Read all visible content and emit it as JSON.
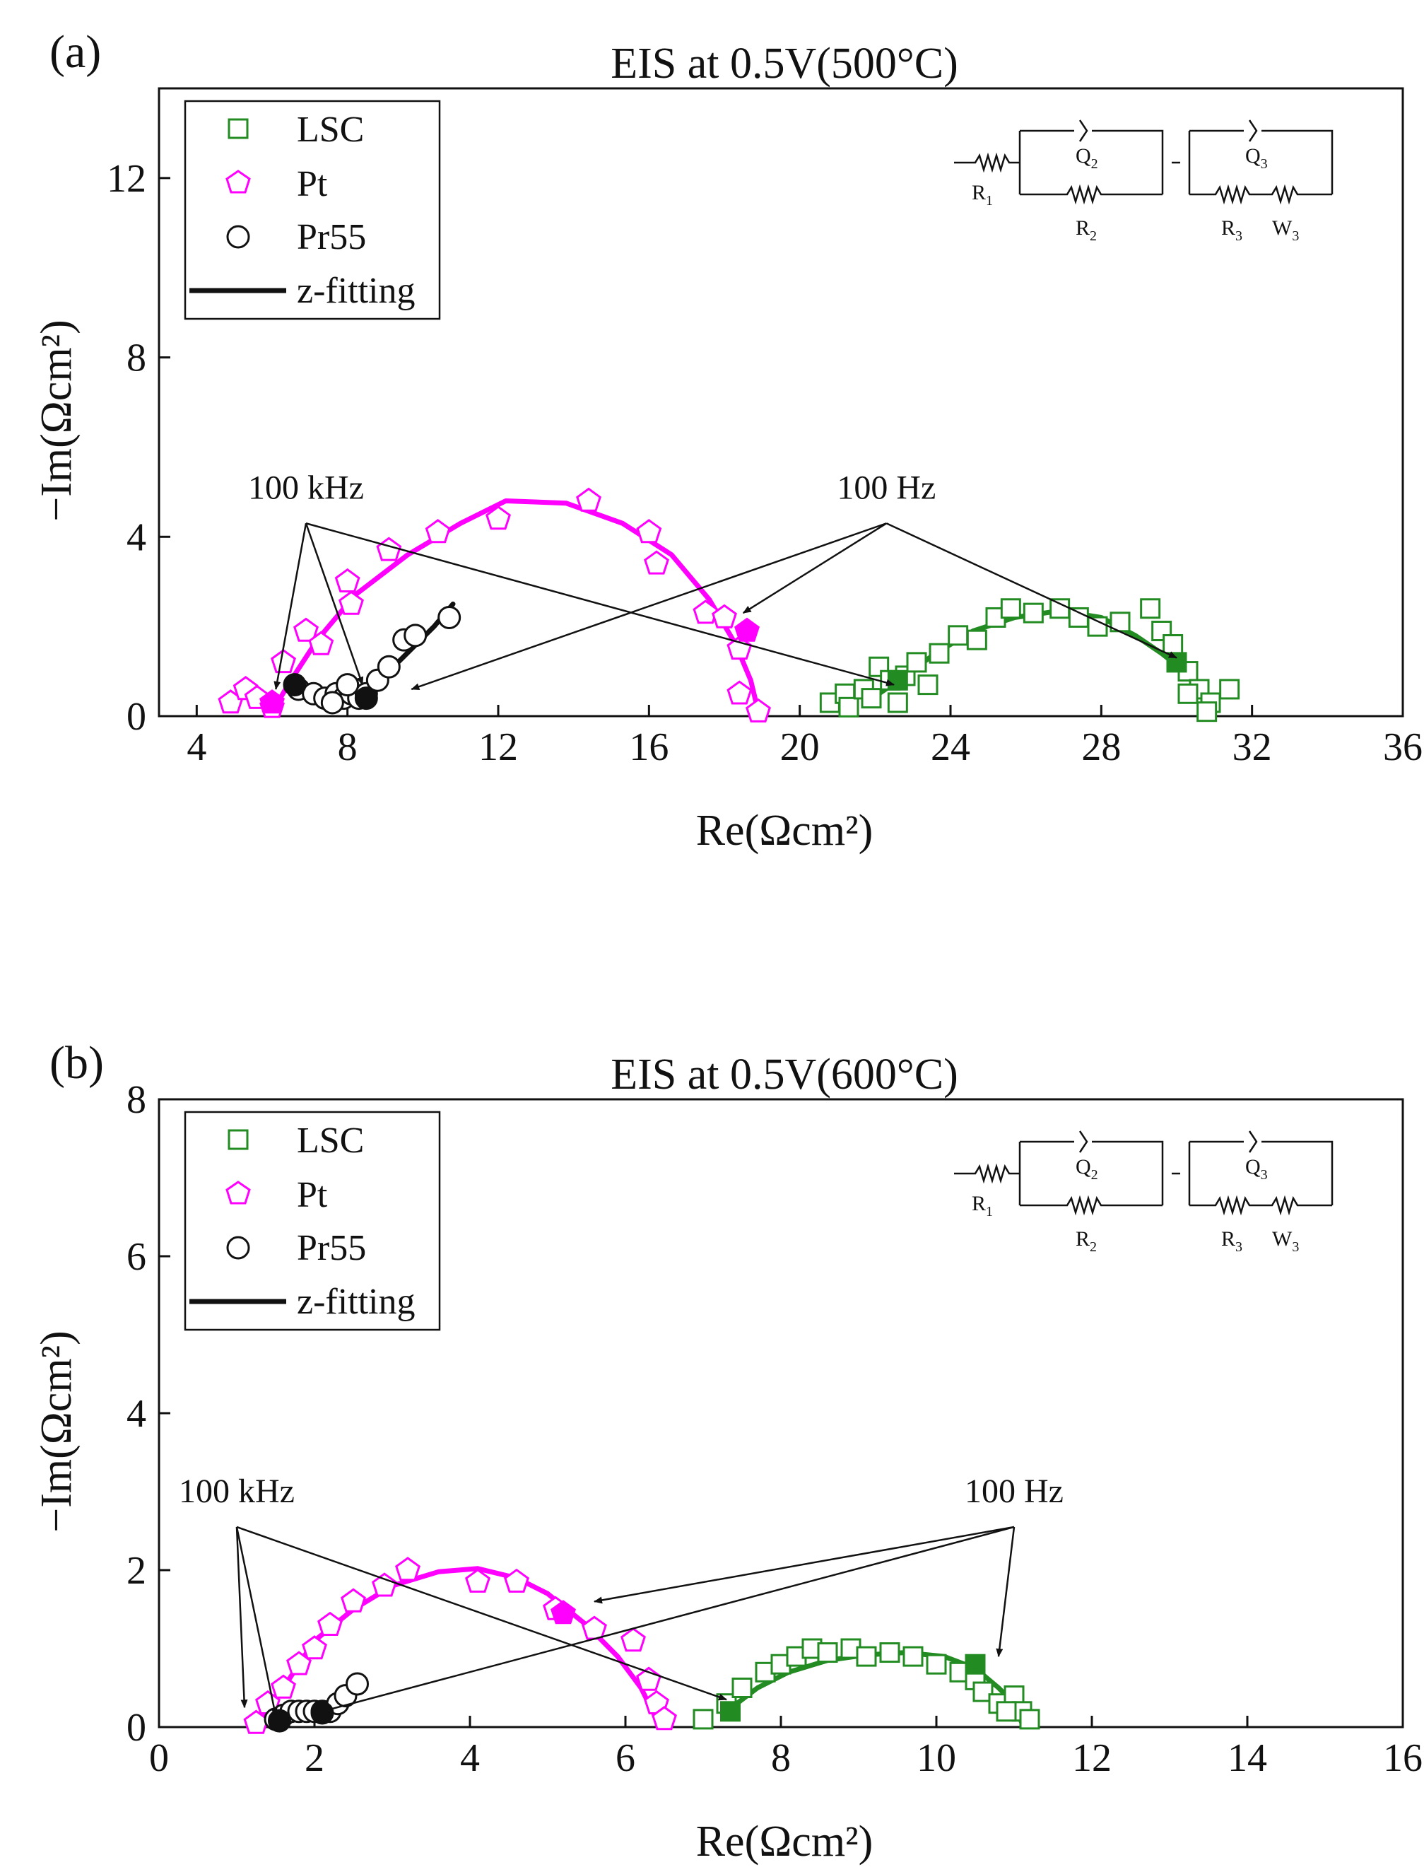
{
  "colors": {
    "LSC": "#228B22",
    "Pt": "#FF00FF",
    "Pr55": "#111111",
    "fit": "#111111",
    "axis": "#111111"
  },
  "chart_data": [
    {
      "panel_label": "(a)",
      "type": "scatter",
      "title": "EIS at 0.5V(500°C)",
      "xlabel": "Re(Ωcm²)",
      "ylabel": "−Im(Ωcm²)",
      "xlim": [
        3,
        36
      ],
      "ylim": [
        0,
        14
      ],
      "xticks": [
        4,
        8,
        12,
        16,
        20,
        24,
        28,
        32,
        36
      ],
      "yticks": [
        0,
        4,
        8,
        12
      ],
      "grid": false,
      "legend_position": "top-left",
      "legend": [
        "LSC",
        "Pt",
        "Pr55",
        "z-fitting"
      ],
      "circuit": {
        "components": [
          "R1",
          "Q2",
          "R2",
          "Q3",
          "R3",
          "W3"
        ],
        "labels": {
          "R1": [
            "R",
            "1"
          ],
          "Q2": [
            "Q",
            "2"
          ],
          "R2": [
            "R",
            "2"
          ],
          "Q3": [
            "Q",
            "3"
          ],
          "R3": [
            "R",
            "3"
          ],
          "W3": [
            "W",
            "3"
          ]
        }
      },
      "annotations": [
        {
          "text": "100 kHz",
          "at": [
            6.9,
            4.3
          ],
          "arrows_to": [
            [
              6.1,
              0.6
            ],
            [
              8.4,
              0.7
            ],
            [
              22.5,
              0.7
            ]
          ]
        },
        {
          "text": "100 Hz",
          "at": [
            22.3,
            4.3
          ],
          "arrows_to": [
            [
              18.5,
              2.3
            ],
            [
              9.7,
              0.6
            ],
            [
              30.0,
              1.3
            ]
          ]
        }
      ],
      "series": [
        {
          "name": "LSC",
          "marker": "square",
          "x": [
            20.8,
            21.2,
            21.3,
            21.7,
            21.9,
            22.1,
            22.4,
            22.6,
            22.8,
            23.1,
            23.4,
            23.7,
            24.2,
            24.7,
            25.2,
            25.6,
            26.2,
            26.9,
            27.4,
            27.9,
            28.5,
            29.3,
            29.6,
            29.9,
            30.3,
            30.6,
            30.9,
            31.4,
            30.8,
            30.3
          ],
          "y": [
            0.3,
            0.5,
            0.2,
            0.6,
            0.4,
            1.1,
            0.8,
            0.3,
            0.9,
            1.2,
            0.7,
            1.4,
            1.8,
            1.7,
            2.2,
            2.4,
            2.3,
            2.4,
            2.2,
            2.0,
            2.1,
            2.4,
            1.9,
            1.6,
            1.0,
            0.6,
            0.3,
            0.6,
            0.1,
            0.5
          ]
        },
        {
          "name": "Pt",
          "marker": "pentagon",
          "x": [
            4.9,
            5.3,
            5.6,
            6.0,
            6.3,
            6.9,
            7.3,
            8.0,
            8.1,
            9.1,
            10.4,
            12.0,
            14.4,
            16.0,
            16.2,
            17.5,
            18.0,
            18.4,
            18.4,
            18.9
          ],
          "y": [
            0.3,
            0.6,
            0.4,
            0.2,
            1.2,
            1.9,
            1.6,
            3.0,
            2.5,
            3.7,
            4.1,
            4.4,
            4.8,
            4.1,
            3.4,
            2.3,
            2.2,
            1.5,
            0.5,
            0.1
          ]
        },
        {
          "name": "Pr55",
          "marker": "circle",
          "x": [
            6.7,
            7.1,
            7.4,
            7.7,
            7.9,
            8.1,
            8.3,
            8.5,
            8.8,
            9.1,
            9.5,
            9.8,
            10.7,
            8.0,
            7.6
          ],
          "y": [
            0.6,
            0.5,
            0.4,
            0.5,
            0.4,
            0.5,
            0.4,
            0.5,
            0.8,
            1.1,
            1.7,
            1.8,
            2.2,
            0.7,
            0.3
          ]
        },
        {
          "name": "LSC-fit",
          "role": "fit",
          "color_key": "LSC",
          "x": [
            22.1,
            22.8,
            23.6,
            24.6,
            25.7,
            26.9,
            28.0,
            28.9,
            29.6,
            30.2,
            30.7,
            31.0
          ],
          "y": [
            0.5,
            0.9,
            1.4,
            1.9,
            2.2,
            2.35,
            2.2,
            1.8,
            1.4,
            1.0,
            0.5,
            0.1
          ]
        },
        {
          "name": "Pt-fit",
          "role": "fit",
          "color_key": "Pt",
          "x": [
            6.0,
            6.5,
            7.2,
            8.2,
            9.6,
            11.0,
            12.2,
            13.8,
            15.3,
            16.6,
            17.6,
            18.3,
            18.7,
            18.9
          ],
          "y": [
            0.1,
            0.8,
            1.7,
            2.7,
            3.6,
            4.3,
            4.8,
            4.75,
            4.3,
            3.6,
            2.6,
            1.6,
            0.8,
            0.1
          ]
        },
        {
          "name": "Pr55-fit",
          "role": "fit",
          "color_key": "Pr55",
          "x": [
            7.6,
            8.2,
            8.6,
            9.1,
            9.7,
            10.3,
            10.8
          ],
          "y": [
            0.2,
            0.35,
            0.5,
            1.0,
            1.5,
            2.0,
            2.5
          ]
        },
        {
          "name": "LSC-100Hz",
          "role": "highlight",
          "color_key": "LSC",
          "marker": "square",
          "x": [
            22.6,
            30.0
          ],
          "y": [
            0.8,
            1.2
          ]
        },
        {
          "name": "Pt-100Hz",
          "role": "highlight",
          "color_key": "Pt",
          "marker": "pentagon",
          "x": [
            6.0,
            18.6
          ],
          "y": [
            0.3,
            1.9
          ]
        },
        {
          "name": "Pr55-100Hz",
          "role": "highlight",
          "color_key": "Pr55",
          "marker": "circle",
          "x": [
            6.6,
            8.5
          ],
          "y": [
            0.7,
            0.4
          ]
        }
      ]
    },
    {
      "panel_label": "(b)",
      "type": "scatter",
      "title": "EIS at 0.5V(600°C)",
      "xlabel": "Re(Ωcm²)",
      "ylabel": "−Im(Ωcm²)",
      "xlim": [
        0,
        16
      ],
      "ylim": [
        0,
        8
      ],
      "xticks": [
        0,
        2,
        4,
        6,
        8,
        10,
        12,
        14,
        16
      ],
      "yticks": [
        0,
        2,
        4,
        6,
        8
      ],
      "grid": false,
      "legend_position": "top-left",
      "legend": [
        "LSC",
        "Pt",
        "Pr55",
        "z-fitting"
      ],
      "circuit": {
        "components": [
          "R1",
          "Q2",
          "R2",
          "Q3",
          "R3",
          "W3"
        ],
        "labels": {
          "R1": [
            "R",
            "1"
          ],
          "Q2": [
            "Q",
            "2"
          ],
          "R2": [
            "R",
            "2"
          ],
          "Q3": [
            "Q",
            "3"
          ],
          "R3": [
            "R",
            "3"
          ],
          "W3": [
            "W",
            "3"
          ]
        }
      },
      "annotations": [
        {
          "text": "100 kHz",
          "at": [
            1.0,
            2.55
          ],
          "arrows_to": [
            [
              1.1,
              0.25
            ],
            [
              1.5,
              0.15
            ],
            [
              7.3,
              0.35
            ]
          ]
        },
        {
          "text": "100 Hz",
          "at": [
            11.0,
            2.55
          ],
          "arrows_to": [
            [
              5.6,
              1.6
            ],
            [
              2.1,
              0.2
            ],
            [
              10.8,
              0.9
            ]
          ]
        }
      ],
      "series": [
        {
          "name": "LSC",
          "marker": "square",
          "x": [
            7.0,
            7.3,
            7.5,
            7.8,
            8.0,
            8.2,
            8.4,
            8.6,
            8.9,
            9.1,
            9.4,
            9.7,
            10.0,
            10.3,
            10.5,
            10.6,
            10.8,
            11.0,
            11.1,
            11.2,
            10.9
          ],
          "y": [
            0.1,
            0.3,
            0.5,
            0.7,
            0.8,
            0.9,
            1.0,
            0.95,
            1.0,
            0.9,
            0.95,
            0.9,
            0.8,
            0.7,
            0.6,
            0.45,
            0.3,
            0.4,
            0.2,
            0.1,
            0.2
          ]
        },
        {
          "name": "Pt",
          "marker": "pentagon",
          "x": [
            1.25,
            1.4,
            1.6,
            1.8,
            2.0,
            2.2,
            2.5,
            2.9,
            3.2,
            4.1,
            4.6,
            5.1,
            5.6,
            6.1,
            6.3,
            6.4,
            6.5
          ],
          "y": [
            0.05,
            0.3,
            0.5,
            0.8,
            1.0,
            1.3,
            1.6,
            1.8,
            2.0,
            1.85,
            1.85,
            1.5,
            1.25,
            1.1,
            0.6,
            0.3,
            0.1
          ]
        },
        {
          "name": "Pr55",
          "marker": "circle",
          "x": [
            1.5,
            1.6,
            1.7,
            1.8,
            1.9,
            2.0,
            2.1,
            2.2,
            2.3,
            2.4,
            2.55
          ],
          "y": [
            0.1,
            0.15,
            0.2,
            0.2,
            0.2,
            0.2,
            0.2,
            0.2,
            0.3,
            0.4,
            0.55
          ]
        },
        {
          "name": "LSC-fit",
          "role": "fit",
          "color_key": "LSC",
          "x": [
            7.3,
            7.7,
            8.1,
            8.6,
            9.1,
            9.6,
            10.1,
            10.5,
            10.8,
            11.0,
            11.1
          ],
          "y": [
            0.2,
            0.5,
            0.7,
            0.85,
            0.92,
            0.95,
            0.9,
            0.75,
            0.5,
            0.3,
            0.05
          ]
        },
        {
          "name": "Pt-fit",
          "role": "fit",
          "color_key": "Pt",
          "x": [
            1.3,
            1.6,
            2.0,
            2.5,
            3.0,
            3.6,
            4.1,
            4.6,
            5.0,
            5.5,
            5.9,
            6.2,
            6.4
          ],
          "y": [
            0.05,
            0.5,
            1.1,
            1.5,
            1.8,
            1.98,
            2.02,
            1.9,
            1.7,
            1.3,
            0.9,
            0.5,
            0.1
          ]
        },
        {
          "name": "Pr55-fit",
          "role": "fit",
          "color_key": "Pr55",
          "x": [
            1.5,
            1.7,
            1.9,
            2.1,
            2.3,
            2.5
          ],
          "y": [
            0.05,
            0.12,
            0.15,
            0.18,
            0.3,
            0.5
          ]
        },
        {
          "name": "LSC-100Hz",
          "role": "highlight",
          "color_key": "LSC",
          "marker": "square",
          "x": [
            7.35,
            10.5
          ],
          "y": [
            0.2,
            0.8
          ]
        },
        {
          "name": "Pt-100Hz",
          "role": "highlight",
          "color_key": "Pt",
          "marker": "pentagon",
          "x": [
            5.2
          ],
          "y": [
            1.45
          ]
        },
        {
          "name": "Pr55-100Hz",
          "role": "highlight",
          "color_key": "Pr55",
          "marker": "circle",
          "x": [
            1.55,
            2.1
          ],
          "y": [
            0.08,
            0.18
          ]
        }
      ]
    }
  ]
}
